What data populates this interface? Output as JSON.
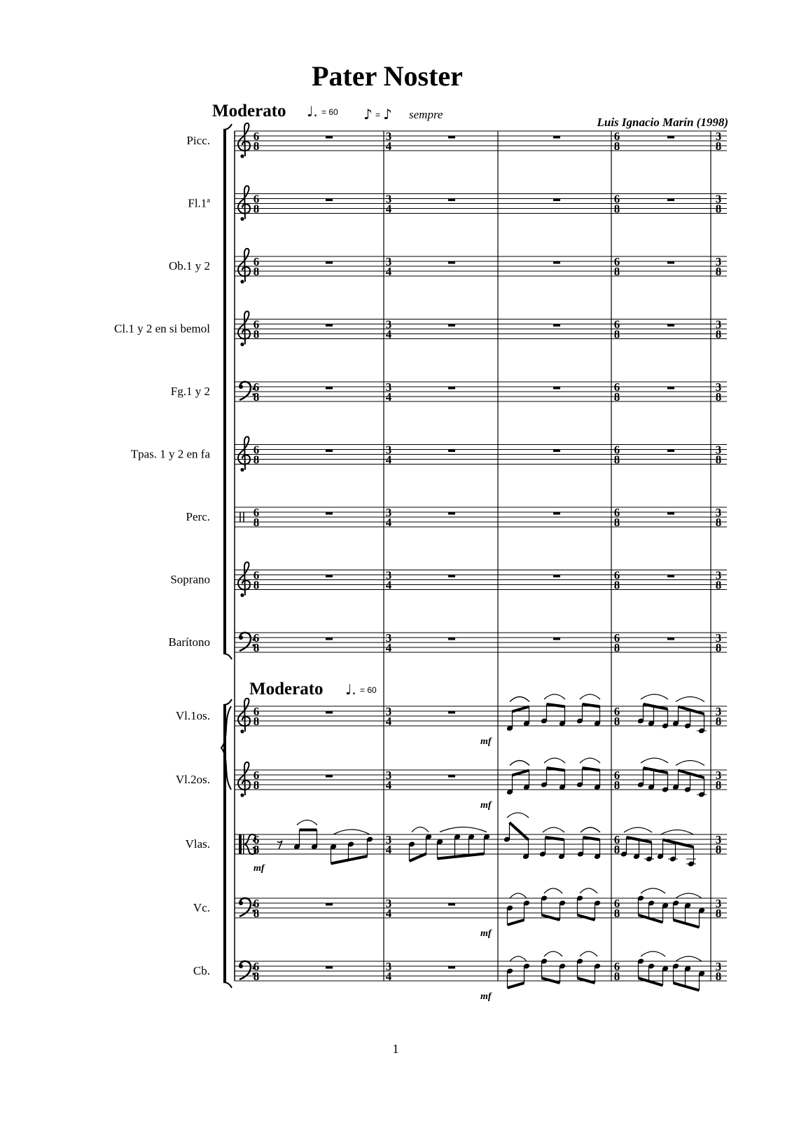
{
  "title": "Pater Noster",
  "tempo": {
    "label": "Moderato",
    "note": "♩.",
    "value": "= 60"
  },
  "equivalence": {
    "left": "♪",
    "eq": "=",
    "right": "♪",
    "text": "sempre"
  },
  "composer": "Luis Ignacio Marín (1998)",
  "strings_tempo": {
    "label": "Moderato",
    "note": "♩.",
    "value": "= 60"
  },
  "page_number": "1",
  "time_signatures": [
    {
      "measure": 1,
      "top": "6",
      "bottom": "8"
    },
    {
      "measure": 2,
      "top": "3",
      "bottom": "4"
    },
    {
      "measure": 4,
      "top": "6",
      "bottom": "8"
    },
    {
      "measure": 5,
      "top": "3",
      "bottom": "8"
    }
  ],
  "dynamic": "mf",
  "staves": [
    {
      "label": "Picc.",
      "clef": "treble",
      "rest_measures": [
        1,
        2,
        3,
        4
      ]
    },
    {
      "label": "Fl.1ª",
      "clef": "treble",
      "rest_measures": [
        1,
        2,
        3,
        4
      ]
    },
    {
      "label": "Ob.1 y 2",
      "clef": "treble",
      "rest_measures": [
        1,
        2,
        3,
        4
      ]
    },
    {
      "label": "Cl.1 y 2  en si  bemol",
      "clef": "treble",
      "rest_measures": [
        1,
        2,
        3,
        4
      ]
    },
    {
      "label": "Fg.1 y 2",
      "clef": "bass",
      "rest_measures": [
        1,
        2,
        3,
        4
      ]
    },
    {
      "label": "Tpas. 1 y 2 en fa",
      "clef": "treble",
      "rest_measures": [
        1,
        2,
        3,
        4
      ]
    },
    {
      "label": "Perc.",
      "clef": "percussion",
      "rest_measures": [
        1,
        2,
        3,
        4
      ]
    },
    {
      "label": "Soprano",
      "clef": "treble",
      "rest_measures": [
        1,
        2,
        3,
        4
      ]
    },
    {
      "label": "Barítono",
      "clef": "bass",
      "rest_measures": [
        1,
        2,
        3,
        4
      ]
    },
    {
      "label": "Vl.1os.",
      "clef": "treble",
      "rest_measures": [
        1,
        2
      ],
      "dynamic_measure": 3,
      "groups": [
        {
          "measure": 3,
          "stem": "up",
          "notes": [
            -1,
            1
          ]
        },
        {
          "measure": 3,
          "stem": "up",
          "notes": [
            2,
            1
          ]
        },
        {
          "measure": 3,
          "stem": "up",
          "notes": [
            2,
            1
          ]
        },
        {
          "measure": 4,
          "stem": "up",
          "notes": [
            2,
            1,
            0
          ]
        },
        {
          "measure": 4,
          "stem": "up",
          "notes": [
            1,
            0,
            -2
          ]
        }
      ]
    },
    {
      "label": "Vl.2os.",
      "clef": "treble",
      "rest_measures": [
        1,
        2
      ],
      "dynamic_measure": 3,
      "groups": [
        {
          "measure": 3,
          "stem": "up",
          "notes": [
            -1,
            1
          ]
        },
        {
          "measure": 3,
          "stem": "up",
          "notes": [
            2,
            1
          ]
        },
        {
          "measure": 3,
          "stem": "up",
          "notes": [
            2,
            1
          ]
        },
        {
          "measure": 4,
          "stem": "up",
          "notes": [
            2,
            1,
            0
          ]
        },
        {
          "measure": 4,
          "stem": "up",
          "notes": [
            1,
            0,
            -2
          ]
        }
      ]
    },
    {
      "label": "Vlas.",
      "clef": "alto",
      "rest_measures": [],
      "dynamic_measure": 1,
      "groups": [
        {
          "measure": 1,
          "stem": "up",
          "rest8": true,
          "notes": [
            3,
            3
          ]
        },
        {
          "measure": 1,
          "stem": "down",
          "notes": [
            3,
            4,
            6
          ],
          "slur": true
        },
        {
          "measure": 2,
          "stem": "down",
          "notes": [
            4,
            7
          ],
          "slur": true
        },
        {
          "measure": 2,
          "stem": "down",
          "notes": [
            5,
            7,
            7,
            7
          ],
          "slur": true
        },
        {
          "measure": 3,
          "stem": "up",
          "notes": [
            6,
            -1
          ],
          "slur": true
        },
        {
          "measure": 3,
          "stem": "up",
          "notes": [
            0,
            -1
          ],
          "slur": true
        },
        {
          "measure": 3,
          "stem": "up",
          "notes": [
            0,
            -1
          ],
          "slur": true
        },
        {
          "measure": 4,
          "stem": "up",
          "notes": [
            0,
            -1,
            -2
          ],
          "slur": true
        },
        {
          "measure": 4,
          "stem": "up",
          "notes": [
            -1,
            -2,
            -4
          ],
          "slur": true
        }
      ]
    },
    {
      "label": "Vc.",
      "clef": "bass",
      "rest_measures": [
        1,
        2
      ],
      "dynamic_measure": 3,
      "groups": [
        {
          "measure": 3,
          "stem": "down",
          "notes": [
            4,
            6
          ]
        },
        {
          "measure": 3,
          "stem": "down",
          "notes": [
            8,
            6
          ]
        },
        {
          "measure": 3,
          "stem": "down",
          "notes": [
            8,
            6
          ]
        },
        {
          "measure": 4,
          "stem": "down",
          "notes": [
            8,
            6,
            5
          ]
        },
        {
          "measure": 4,
          "stem": "down",
          "notes": [
            6,
            5,
            3
          ]
        }
      ]
    },
    {
      "label": "Cb.",
      "clef": "bass",
      "rest_measures": [
        1,
        2
      ],
      "dynamic_measure": 3,
      "groups": [
        {
          "measure": 3,
          "stem": "down",
          "notes": [
            4,
            6
          ]
        },
        {
          "measure": 3,
          "stem": "down",
          "notes": [
            8,
            6
          ]
        },
        {
          "measure": 3,
          "stem": "down",
          "notes": [
            8,
            6
          ]
        },
        {
          "measure": 4,
          "stem": "down",
          "notes": [
            8,
            6,
            5
          ]
        },
        {
          "measure": 4,
          "stem": "down",
          "notes": [
            6,
            5,
            3
          ]
        }
      ]
    }
  ]
}
